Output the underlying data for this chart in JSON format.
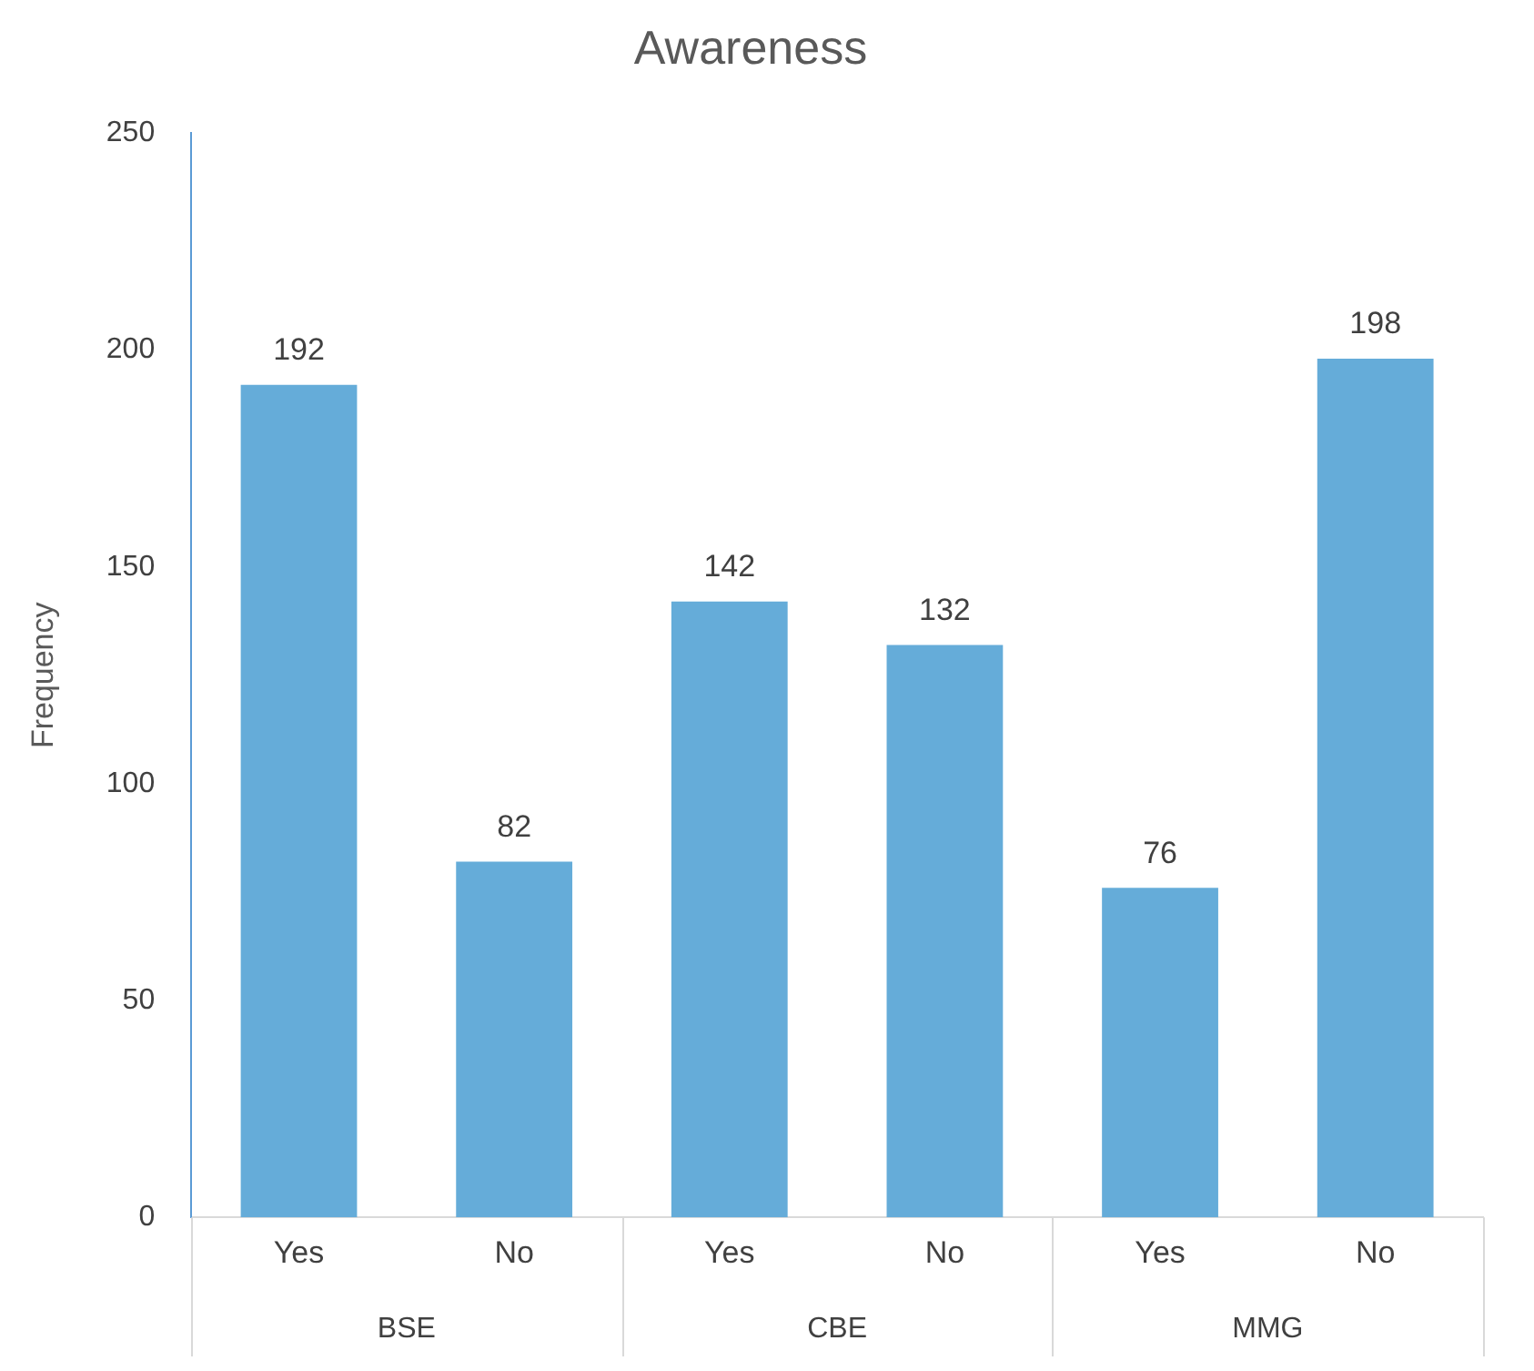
{
  "chart_data": {
    "type": "bar",
    "title": "Awareness",
    "ylabel": "Frequency",
    "categories": [
      "Yes",
      "No",
      "Yes",
      "No",
      "Yes",
      "No"
    ],
    "values": [
      192,
      82,
      142,
      132,
      76,
      198
    ],
    "color": "#65acd9",
    "ylim": [
      0,
      250
    ],
    "yticks": [
      0,
      50,
      100,
      150,
      200,
      250
    ],
    "grid": false,
    "legend": false,
    "data_labels": true,
    "annotations": [
      "BSE",
      "CBE",
      "MMG"
    ]
  }
}
